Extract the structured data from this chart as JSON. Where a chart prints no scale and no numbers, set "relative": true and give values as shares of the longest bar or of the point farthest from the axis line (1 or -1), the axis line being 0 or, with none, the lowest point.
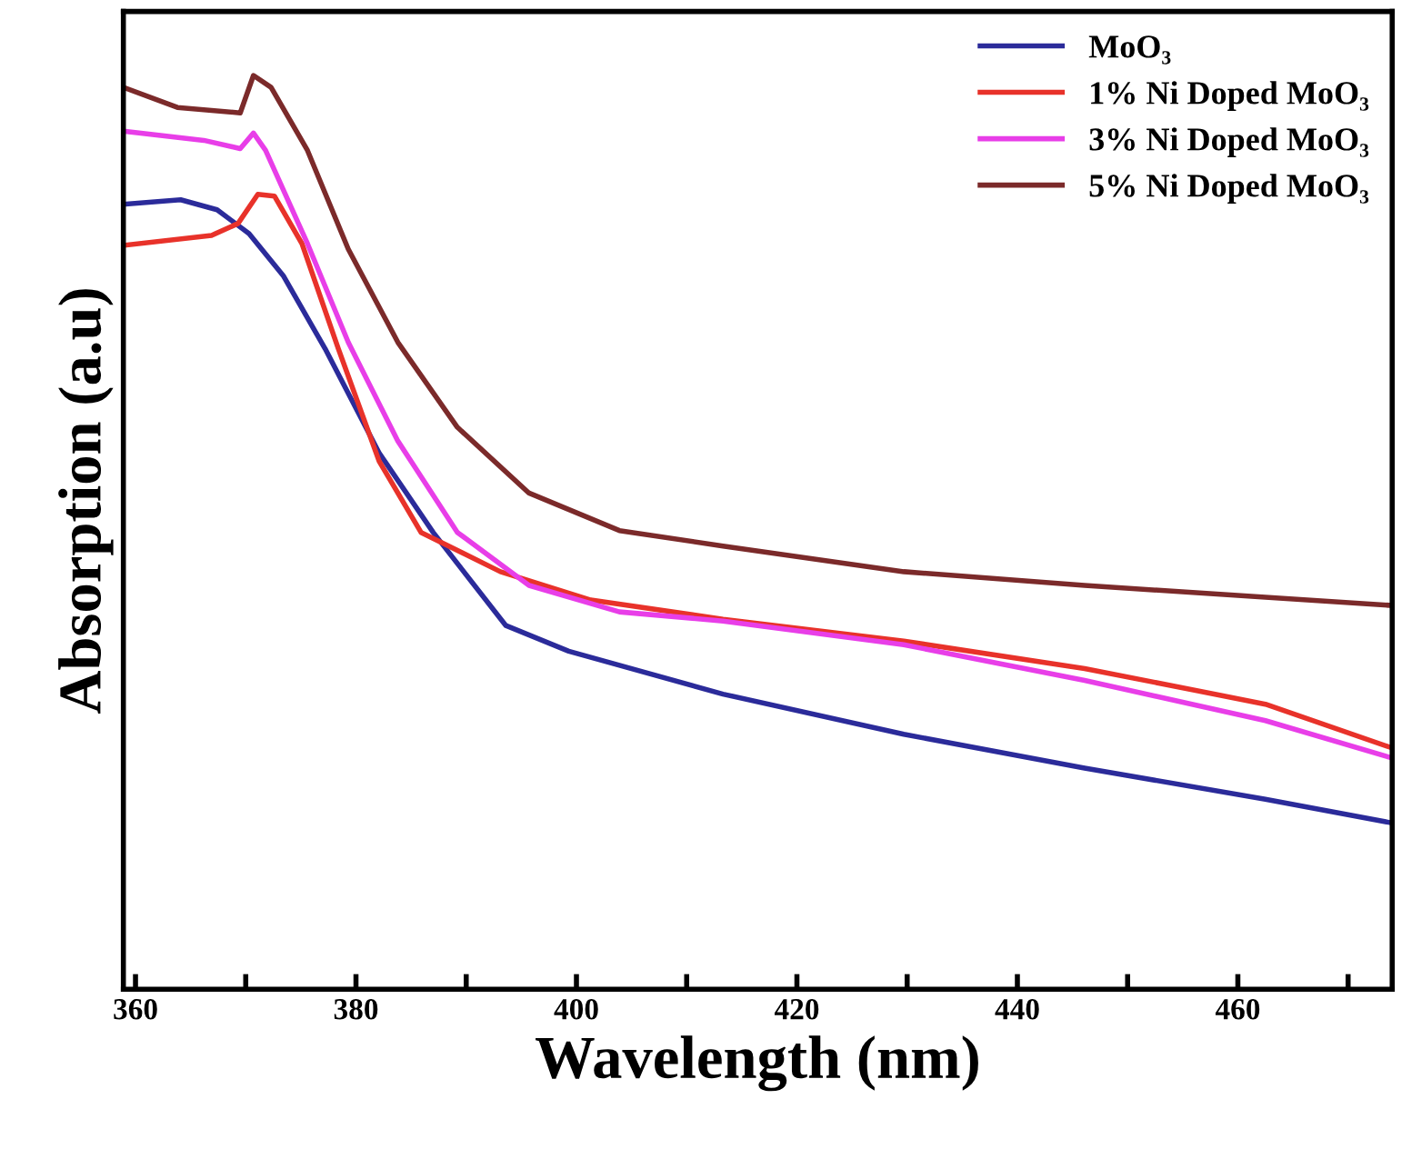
{
  "chart_data": {
    "type": "line",
    "relative": true,
    "xlabel": "Wavelength (nm)",
    "ylabel": "Absorption (a.u)",
    "xlim": [
      358.9,
      474
    ],
    "xticks": [
      360,
      {
        "value": 370,
        "label": null
      },
      380,
      {
        "value": 390,
        "label": null
      },
      400,
      {
        "value": 410,
        "label": null
      },
      420,
      {
        "value": 430,
        "label": null
      },
      440,
      {
        "value": 450,
        "label": null
      },
      460,
      {
        "value": 470,
        "label": null
      }
    ],
    "tick_labels": "x",
    "legend": "top right",
    "grid": false,
    "marker": "none",
    "line_style": "solid",
    "series": [
      {
        "name": "MoO₃",
        "color": "#2b2b9a",
        "x": [
          358.9,
          364.1,
          367.4,
          370.3,
          373.4,
          377.2,
          382.1,
          387,
          393.6,
          399.3,
          413.3,
          429.7,
          446.1,
          462.5,
          474
        ],
        "values": [
          0.859,
          0.864,
          0.853,
          0.827,
          0.781,
          0.701,
          0.587,
          0.5,
          0.398,
          0.37,
          0.323,
          0.279,
          0.242,
          0.208,
          0.182
        ]
      },
      {
        "name": "1% Ni Doped MoO₃",
        "color": "#e8322a",
        "x": [
          358.9,
          366.9,
          369.3,
          371.1,
          372.6,
          375.1,
          378.4,
          382.1,
          385.9,
          393.1,
          401.3,
          413.3,
          429.7,
          446.1,
          462.5,
          474
        ],
        "values": [
          0.814,
          0.825,
          0.838,
          0.87,
          0.868,
          0.816,
          0.701,
          0.578,
          0.5,
          0.457,
          0.426,
          0.405,
          0.381,
          0.351,
          0.312,
          0.264
        ]
      },
      {
        "name": "3% Ni Doped MoO₃",
        "color": "#e83ee8",
        "x": [
          358.9,
          366.2,
          369.5,
          370.7,
          371.8,
          375.6,
          379.3,
          383.8,
          389.2,
          395.7,
          403.9,
          413.3,
          429.7,
          446.1,
          462.5,
          474
        ],
        "values": [
          0.939,
          0.929,
          0.92,
          0.937,
          0.918,
          0.816,
          0.708,
          0.6,
          0.5,
          0.442,
          0.413,
          0.403,
          0.377,
          0.338,
          0.294,
          0.253
        ]
      },
      {
        "name": "5% Ni Doped MoO₃",
        "color": "#7b2a2a",
        "x": [
          358.9,
          363.8,
          369.5,
          370.7,
          372.3,
          375.6,
          379.3,
          383.8,
          389.2,
          395.7,
          403.9,
          413.3,
          429.7,
          446.1,
          462.5,
          474
        ],
        "values": [
          0.987,
          0.965,
          0.959,
          1.0,
          0.987,
          0.918,
          0.81,
          0.708,
          0.615,
          0.543,
          0.502,
          0.485,
          0.457,
          0.442,
          0.429,
          0.42
        ]
      }
    ]
  }
}
